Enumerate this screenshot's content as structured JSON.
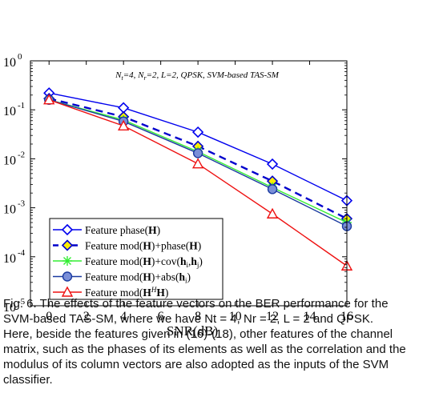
{
  "chart_data": {
    "type": "line",
    "title": "",
    "annotation": "N_t=4, N_r=2, L=2, QPSK, SVM-based TAS-SM",
    "xlabel": "SNR(dB)",
    "ylabel": "",
    "x_scale": "linear",
    "y_scale": "log",
    "xlim": [
      -1,
      16
    ],
    "ylim": [
      1e-05,
      1
    ],
    "x_ticks": [
      0,
      2,
      4,
      6,
      8,
      10,
      12,
      14,
      16
    ],
    "x_tick_labels": [
      "0",
      "2",
      "4",
      "6",
      "8",
      "10",
      "12",
      "14",
      "16"
    ],
    "y_ticks": [
      -5,
      -4,
      -3,
      -2,
      -1,
      0
    ],
    "y_tick_labels": [
      "10",
      "10",
      "10",
      "10",
      "10",
      "10"
    ],
    "y_tick_exponents": [
      "-5",
      "-4",
      "-3",
      "-2",
      "-1",
      "0"
    ],
    "grid": false,
    "legend_position": "bottom-left",
    "x": [
      -1,
      4,
      8,
      12,
      16
    ],
    "series": [
      {
        "name": "Feature phase(H)",
        "values": [
          0.22,
          0.11,
          0.035,
          0.0078,
          0.0014
        ],
        "color": "#0000ee",
        "dash": "solid",
        "marker": "diamond-open"
      },
      {
        "name": "Feature mod(H)+phase(H)",
        "values": [
          0.17,
          0.072,
          0.018,
          0.0035,
          0.0006
        ],
        "color": "#0000cc",
        "dash": "dashed",
        "marker": "diamond-yellow"
      },
      {
        "name": "Feature mod(H)+cov(h_i,h_j)",
        "values": [
          0.16,
          0.062,
          0.014,
          0.0026,
          0.0005
        ],
        "color": "#33ee33",
        "dash": "solid",
        "marker": "star"
      },
      {
        "name": "Feature mod(H)+abs(h_i)",
        "values": [
          0.16,
          0.058,
          0.013,
          0.0024,
          0.00042
        ],
        "color": "#1a3aa0",
        "dash": "solid",
        "marker": "circle-filled"
      },
      {
        "name": "Feature mod(H^H H)",
        "values": [
          0.16,
          0.047,
          0.0079,
          0.00075,
          6.5e-05
        ],
        "color": "#ee1111",
        "dash": "solid",
        "marker": "triangle-open"
      }
    ]
  },
  "caption": {
    "line1": "Fig. 6. The effects of the feature vectors on the BER performance for the",
    "line2": "SVM-based TAS-SM, where we have Nt = 4, Nr = 2, L = 2 and QPSK.",
    "line3": "Here, beside the features given in (16)-(18), other features of the channel",
    "line4": "matrix, such as the phases of its elements as well as the correlation and the",
    "line5": "modulus of its column vectors are also adopted as the inputs of the SVM",
    "line6": "classifier."
  }
}
